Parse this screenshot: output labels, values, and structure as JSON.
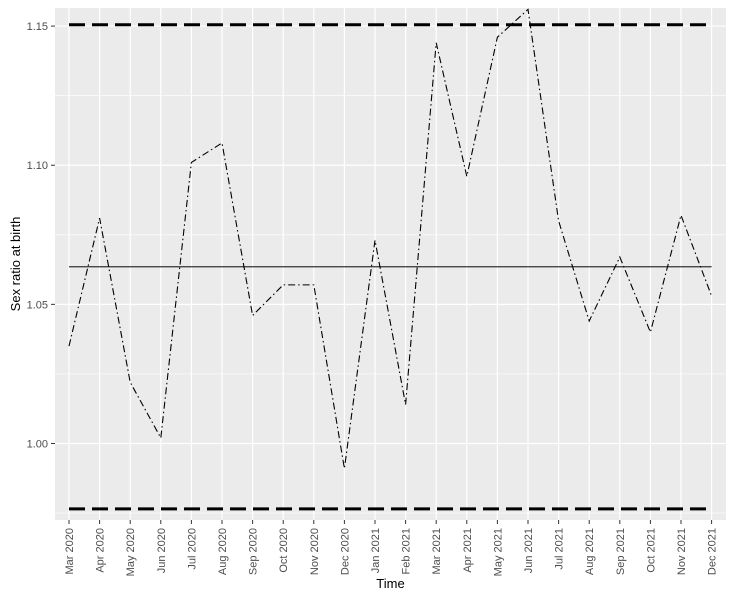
{
  "chart_data": {
    "type": "line",
    "title": "",
    "xlabel": "Time",
    "ylabel": "Sex ratio at birth",
    "x": [
      "Mar 2020",
      "Apr 2020",
      "May 2020",
      "Jun 2020",
      "Jul 2020",
      "Aug 2020",
      "Sep 2020",
      "Oct 2020",
      "Nov 2020",
      "Dec 2020",
      "Jan 2021",
      "Feb 2021",
      "Mar 2021",
      "Apr 2021",
      "May 2021",
      "Jun 2021",
      "Jul 2021",
      "Aug 2021",
      "Sep 2021",
      "Oct 2021",
      "Nov 2021",
      "Dec 2021"
    ],
    "y_ticks": [
      1.0,
      1.05,
      1.1,
      1.15
    ],
    "y_tick_labels": [
      "1.00",
      "1.05",
      "1.10",
      "1.15"
    ],
    "ylim": [
      0.9725,
      1.1565
    ],
    "grid": true,
    "series": [
      {
        "values": [
          1.035,
          1.081,
          1.022,
          1.002,
          1.101,
          1.108,
          1.046,
          1.057,
          1.057,
          0.991,
          1.073,
          1.014,
          1.144,
          1.096,
          1.146,
          1.156,
          1.08,
          1.044,
          1.067,
          1.04,
          1.082,
          1.053
        ],
        "style": "dashdot",
        "color": "#000000"
      }
    ],
    "reference_lines": [
      {
        "y": 1.0635,
        "style": "solid",
        "color": "#333333"
      },
      {
        "y": 1.1505,
        "style": "longdash",
        "color": "#000000"
      },
      {
        "y": 0.9765,
        "style": "longdash",
        "color": "#000000"
      }
    ],
    "colors": {
      "panel_background": "#ebebeb",
      "grid": "#ffffff"
    }
  }
}
